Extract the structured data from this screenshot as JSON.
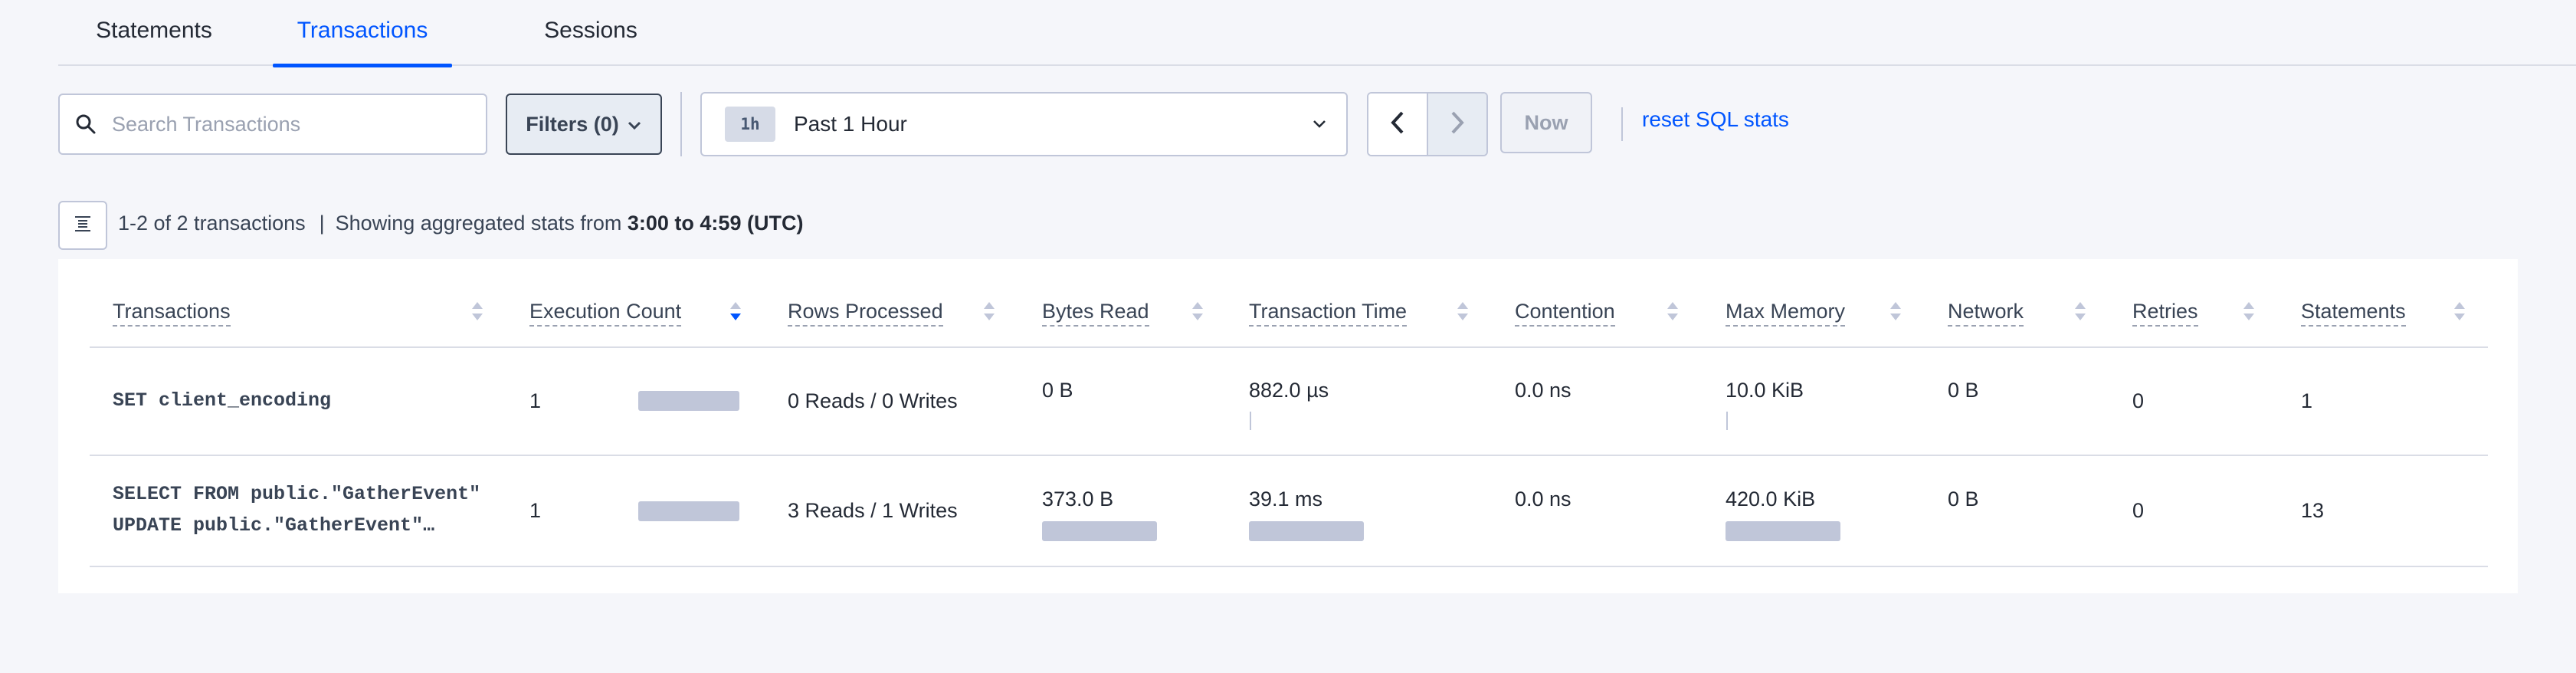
{
  "tabs": [
    {
      "label": "Statements"
    },
    {
      "label": "Transactions"
    },
    {
      "label": "Sessions"
    }
  ],
  "active_tab": "Transactions",
  "search": {
    "placeholder": "Search Transactions",
    "value": ""
  },
  "filters": {
    "label": "Filters (0)"
  },
  "time_range": {
    "badge": "1h",
    "label": "Past 1 Hour"
  },
  "now_label": "Now",
  "reset_label": "reset SQL stats",
  "summary": {
    "count_text": "1-2 of 2 transactions",
    "separator": "|",
    "prefix": "Showing aggregated stats from",
    "range": "3:00 to 4:59 (UTC)"
  },
  "table": {
    "columns": [
      "Transactions",
      "Execution Count",
      "Rows Processed",
      "Bytes Read",
      "Transaction Time",
      "Contention",
      "Max Memory",
      "Network",
      "Retries",
      "Statements"
    ],
    "sorted_column": "Execution Count",
    "sort_direction": "descending",
    "rows": [
      {
        "transaction_line1": "SET client_encoding",
        "transaction_line2": "",
        "execution_count": "1",
        "execution_bar_fraction": 1.0,
        "rows_processed": "0 Reads / 0 Writes",
        "bytes_read": "0 B",
        "bytes_read_fraction": 0.0,
        "transaction_time": "882.0 µs",
        "transaction_time_fraction": 0.02,
        "contention": "0.0 ns",
        "max_memory": "10.0 KiB",
        "max_memory_fraction": 0.02,
        "network": "0 B",
        "retries": "0",
        "statements": "1"
      },
      {
        "transaction_line1": "SELECT FROM public.\"GatherEvent\"",
        "transaction_line2": "UPDATE public.\"GatherEvent\"…",
        "execution_count": "1",
        "execution_bar_fraction": 1.0,
        "rows_processed": "3 Reads / 1 Writes",
        "bytes_read": "373.0 B",
        "bytes_read_fraction": 1.0,
        "transaction_time": "39.1 ms",
        "transaction_time_fraction": 1.0,
        "contention": "0.0 ns",
        "max_memory": "420.0 KiB",
        "max_memory_fraction": 1.0,
        "network": "0 B",
        "retries": "0",
        "statements": "13"
      }
    ]
  },
  "colors": {
    "accent": "#0055ff",
    "bar": "#c0c6d9",
    "background": "#f5f6fa",
    "text": "#242a35"
  }
}
